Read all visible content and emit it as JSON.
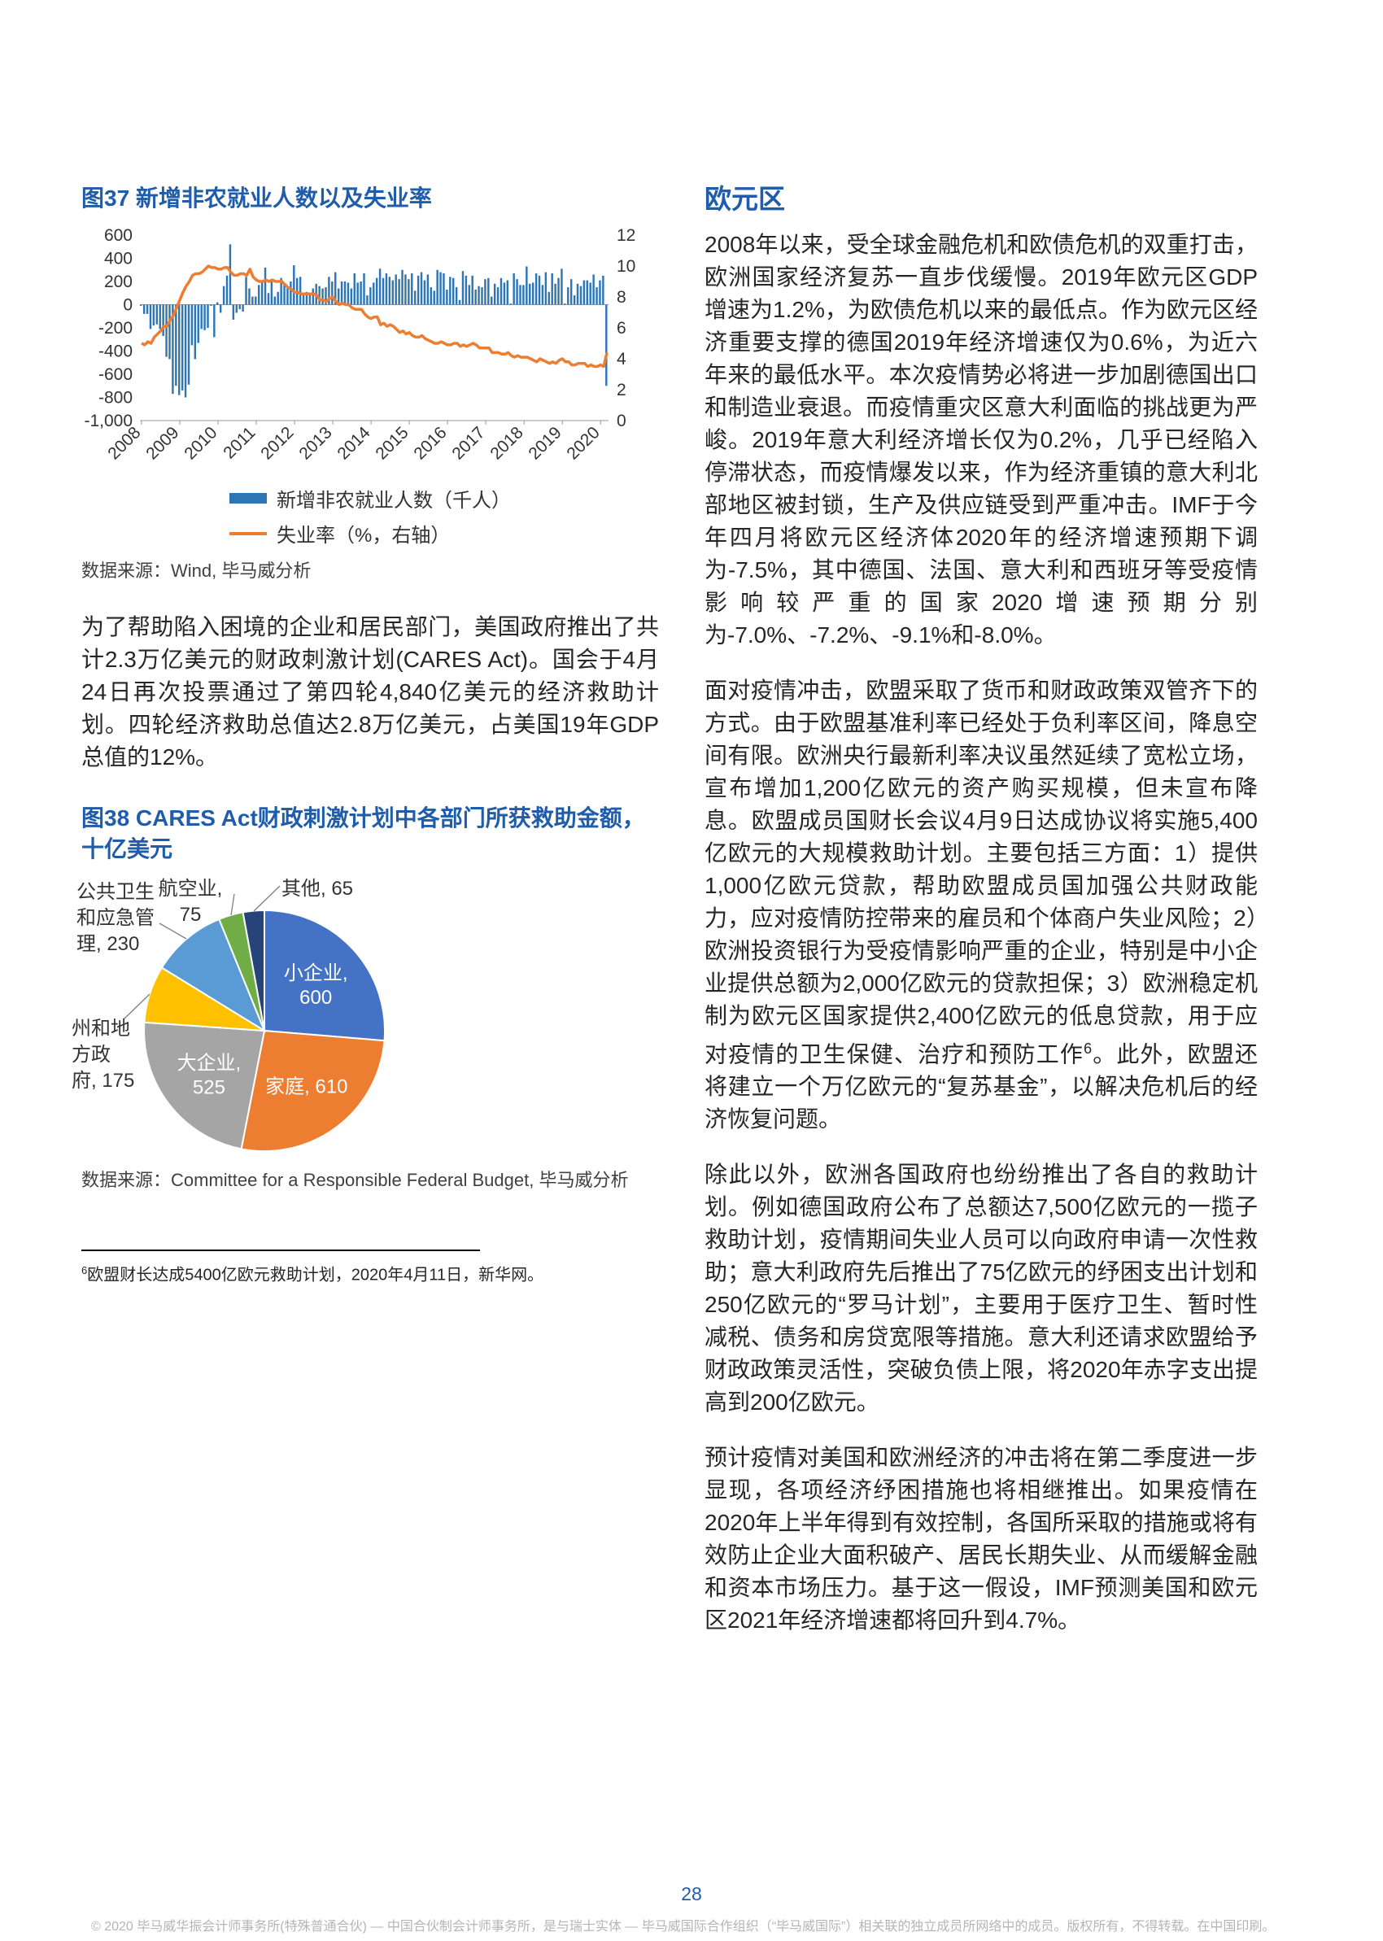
{
  "page": {
    "number": "28",
    "footer": "© 2020 毕马威华振会计师事务所(特殊普通合伙) — 中国合伙制会计师事务所，是与瑞士实体 — 毕马威国际合作组织（“毕马威国际”）相关联的独立成员所网络中的成员。版权所有，不得转载。在中国印刷。"
  },
  "sources": {
    "fig37": "数据来源：Wind, 毕马威分析",
    "fig38": "数据来源：Committee for a Responsible Federal Budget, 毕马威分析"
  },
  "left": {
    "para1": "为了帮助陷入困境的企业和居民部门，美国政府推出了共计2.3万亿美元的财政刺激计划(CARES Act)。国会于4月24日再次投票通过了第四轮4,840亿美元的经济救助计划。四轮经济救助总值达2.8万亿美元，占美国19年GDP总值的12%。",
    "footnote": {
      "marker": "6",
      "text": "欧盟财长达成5400亿欧元救助计划，2020年4月11日，新华网。"
    }
  },
  "right": {
    "heading": "欧元区",
    "para1": "2008年以来，受全球金融危机和欧债危机的双重打击，欧洲国家经济复苏一直步伐缓慢。2019年欧元区GDP增速为1.2%，为欧债危机以来的最低点。作为欧元区经济重要支撑的德国2019年经济增速仅为0.6%，为近六年来的最低水平。本次疫情势必将进一步加剧德国出口和制造业衰退。而疫情重灾区意大利面临的挑战更为严峻。2019年意大利经济增长仅为0.2%，几乎已经陷入停滞状态，而疫情爆发以来，作为经济重镇的意大利北部地区被封锁，生产及供应链受到严重冲击。IMF于今年四月将欧元区经济体2020年的经济增速预期下调为-7.5%，其中德国、法国、意大利和西班牙等受疫情影响较严重的国家2020增速预期分别为-7.0%、-7.2%、-9.1%和-8.0%。",
    "para2a": "面对疫情冲击，欧盟采取了货币和财政政策双管齐下的方式。由于欧盟基准利率已经处于负利率区间，降息空间有限。欧洲央行最新利率决议虽然延续了宽松立场，宣布增加1,200亿欧元的资产购买规模，但未宣布降息。欧盟成员国财长会议4月9日达成协议将实施5,400亿欧元的大规模救助计划。主要包括三方面：1）提供1,000亿欧元贷款，帮助欧盟成员国加强公共财政能力，应对疫情防控带来的雇员和个体商户失业风险；2）欧洲投资银行为受疫情影响严重的企业，特别是中小企业提供总额为2,000亿欧元的贷款担保；3）欧洲稳定机制为欧元区国家提供2,400亿欧元的低息贷款，用于应对疫情的卫生保健、治疗和预防工作",
    "para2sup": "6",
    "para2b": "。此外，欧盟还将建立一个万亿欧元的“复苏基金”，以解决危机后的经济恢复问题。",
    "para3": "除此以外，欧洲各国政府也纷纷推出了各自的救助计划。例如德国政府公布了总额达7,500亿欧元的一揽子救助计划，疫情期间失业人员可以向政府申请一次性救助；意大利政府先后推出了75亿欧元的纾困支出计划和250亿欧元的“罗马计划”，主要用于医疗卫生、暂时性减税、债务和房贷宽限等措施。意大利还请求欧盟给予财政政策灵活性，突破负债上限，将2020年赤字支出提高到200亿欧元。",
    "para4": "预计疫情对美国和欧洲经济的冲击将在第二季度进一步显现，各项经济纾困措施也将相继推出。如果疫情在2020年上半年得到有效控制，各国所采取的措施或将有效防止企业大面积破产、居民长期失业、从而缓解金融和资本市场压力。基于这一假设，IMF预测美国和欧元区2021年经济增速都将回升到4.7%。"
  },
  "chart_data": [
    {
      "type": "bar+line",
      "title": "图37 新增非农就业人数以及失业率",
      "x_unit": "month",
      "x_start_year": 2008,
      "x_ticks": [
        2008,
        2009,
        2010,
        2011,
        2012,
        2013,
        2014,
        2015,
        2016,
        2017,
        2018,
        2019,
        2020
      ],
      "left_axis": {
        "min": -1000,
        "max": 600,
        "ticks": [
          600,
          400,
          200,
          0,
          -200,
          -400,
          -600,
          -800,
          -1000
        ]
      },
      "right_axis": {
        "min": 0,
        "max": 12,
        "ticks": [
          12,
          10,
          8,
          6,
          4,
          2,
          0
        ]
      },
      "legend_position": "bottom",
      "grid": false,
      "series": [
        {
          "name": "新增非农就业人数（千人）",
          "type": "bar",
          "axis": "left",
          "color": "#2e75b6",
          "values": [
            -10,
            -80,
            -80,
            -210,
            -180,
            -170,
            -210,
            -270,
            -450,
            -470,
            -770,
            -700,
            -780,
            -740,
            -800,
            -690,
            -350,
            -470,
            -330,
            -210,
            -220,
            -200,
            -10,
            -280,
            20,
            -70,
            160,
            250,
            520,
            -130,
            -70,
            -40,
            -60,
            240,
            140,
            70,
            70,
            170,
            210,
            320,
            100,
            220,
            70,
            110,
            230,
            180,
            160,
            200,
            340,
            230,
            240,
            100,
            110,
            90,
            140,
            180,
            160,
            140,
            150,
            240,
            200,
            280,
            140,
            200,
            200,
            190,
            140,
            270,
            190,
            200,
            270,
            80,
            150,
            190,
            230,
            310,
            230,
            270,
            240,
            210,
            260,
            220,
            300,
            260,
            220,
            270,
            120,
            250,
            280,
            210,
            260,
            150,
            120,
            300,
            280,
            270,
            130,
            240,
            230,
            150,
            40,
            290,
            250,
            170,
            250,
            130,
            160,
            150,
            220,
            230,
            70,
            180,
            150,
            230,
            190,
            210,
            10,
            270,
            220,
            170,
            170,
            330,
            180,
            190,
            270,
            250,
            170,
            280,
            110,
            270,
            180,
            230,
            310,
            10,
            150,
            220,
            80,
            180,
            160,
            210,
            210,
            190,
            260,
            150,
            210,
            250,
            -700
          ]
        },
        {
          "name": "失业率（%，右轴）",
          "type": "line",
          "axis": "right",
          "color": "#ed7d31",
          "values": [
            5.0,
            4.9,
            5.1,
            5.0,
            5.4,
            5.6,
            5.8,
            6.1,
            6.1,
            6.5,
            6.8,
            7.3,
            7.8,
            8.3,
            8.7,
            9.0,
            9.4,
            9.5,
            9.5,
            9.6,
            9.8,
            10.0,
            9.9,
            9.9,
            9.8,
            9.8,
            9.9,
            9.9,
            9.6,
            9.4,
            9.4,
            9.5,
            9.5,
            9.4,
            9.8,
            9.3,
            9.1,
            9.0,
            9.0,
            9.1,
            9.0,
            9.1,
            9.0,
            9.0,
            9.0,
            8.8,
            8.6,
            8.5,
            8.3,
            8.3,
            8.2,
            8.2,
            8.2,
            8.2,
            8.2,
            8.1,
            7.8,
            7.8,
            7.7,
            7.9,
            8.0,
            7.7,
            7.5,
            7.6,
            7.5,
            7.5,
            7.3,
            7.2,
            7.2,
            7.2,
            6.9,
            6.7,
            6.6,
            6.7,
            6.7,
            6.2,
            6.3,
            6.1,
            6.2,
            6.1,
            5.9,
            5.7,
            5.8,
            5.6,
            5.7,
            5.5,
            5.4,
            5.4,
            5.5,
            5.3,
            5.2,
            5.1,
            5.0,
            5.0,
            5.1,
            5.0,
            4.9,
            4.9,
            5.0,
            5.0,
            4.8,
            4.9,
            4.8,
            4.9,
            5.0,
            4.9,
            4.7,
            4.7,
            4.7,
            4.7,
            4.4,
            4.4,
            4.4,
            4.3,
            4.3,
            4.4,
            4.2,
            4.1,
            4.2,
            4.1,
            4.1,
            4.1,
            4.0,
            3.9,
            3.8,
            4.0,
            3.9,
            3.8,
            3.7,
            3.8,
            3.7,
            3.9,
            4.0,
            3.8,
            3.8,
            3.6,
            3.6,
            3.7,
            3.7,
            3.7,
            3.5,
            3.6,
            3.5,
            3.5,
            3.6,
            3.5,
            4.4
          ]
        }
      ]
    },
    {
      "type": "pie",
      "title": "图38 CARES Act财政刺激计划中各部门所获救助金额，十亿美元",
      "unit": "十亿美元",
      "slices": [
        {
          "label": "小企业",
          "value": 600,
          "color": "#4472c4",
          "label_pos": "inside"
        },
        {
          "label": "家庭",
          "value": 610,
          "color": "#ed7d31",
          "label_pos": "inside"
        },
        {
          "label": "大企业",
          "value": 525,
          "color": "#a5a5a5",
          "label_pos": "inside"
        },
        {
          "label": "州和地方政府",
          "value": 175,
          "color": "#ffc000",
          "label_pos": "outside"
        },
        {
          "label": "公共卫生和应急管理",
          "value": 230,
          "color": "#5b9bd5",
          "label_pos": "outside"
        },
        {
          "label": "航空业",
          "value": 75,
          "color": "#70ad47",
          "label_pos": "outside"
        },
        {
          "label": "其他",
          "value": 65,
          "color": "#264478",
          "label_pos": "outside"
        }
      ]
    }
  ]
}
